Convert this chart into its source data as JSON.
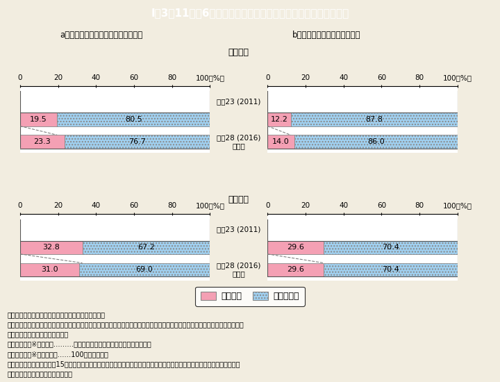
{
  "title": "I－3－11図　6歳未満の子供を持つ夫の家事・育児関連行動者率",
  "title_bg": "#3bbcd0",
  "title_color": "white",
  "subtitle_a": "a．妻・夫共に有業（共働き）の世帯",
  "subtitle_b": "b．夫が有業で妻が無業の世帯",
  "section_kaji": "〈家事〉",
  "section_ikuji": "〈育児〉",
  "kaji_a": [
    {
      "active": 19.5,
      "inactive": 80.5,
      "year": "平成23 (2011)"
    },
    {
      "active": 23.3,
      "inactive": 76.7,
      "year": "平成28 (2016)"
    }
  ],
  "kaji_b": [
    {
      "active": 12.2,
      "inactive": 87.8,
      "year": "平成23 (2011)"
    },
    {
      "active": 14.0,
      "inactive": 86.0,
      "year": "平成28 (2016)"
    }
  ],
  "ikuji_a": [
    {
      "active": 32.8,
      "inactive": 67.2,
      "year": "平成23 (2011)"
    },
    {
      "active": 31.0,
      "inactive": 69.0,
      "year": "平成28 (2016)"
    }
  ],
  "ikuji_b": [
    {
      "active": 29.6,
      "inactive": 70.4,
      "year": "平成23 (2011)"
    },
    {
      "active": 29.6,
      "inactive": 70.4,
      "year": "平成28 (2016)"
    }
  ],
  "color_active": "#f4a0b4",
  "color_inactive": "#a0d0f0",
  "legend_active": "行動者率",
  "legend_inactive": "非行動者率",
  "bg_color": "#f2ede0",
  "notes_line1": "（備考）１．総務省「社会生活基本調査」より作成。",
  "notes_line2": "　　　　２．「夫婦と子供の世帯」における６歳未満の子供を持つ夫の１日当たりの家事関連（「家事」及び「育児」）の行動者",
  "notes_line3": "　　　　　　率（週全体平均）。",
  "notes_line4": "　　　　　　※行動者率………該当する種類の行動をした人の割合（％）",
  "notes_line5": "　　　　　　※非行動者率……100％－行動者率",
  "notes_line6": "　　　　３．本調査では，15分単位で行動を報告することとなっているため，短時間の行動は報告されない可能性があること",
  "notes_line7": "　　　　　　に留意が必要である。"
}
